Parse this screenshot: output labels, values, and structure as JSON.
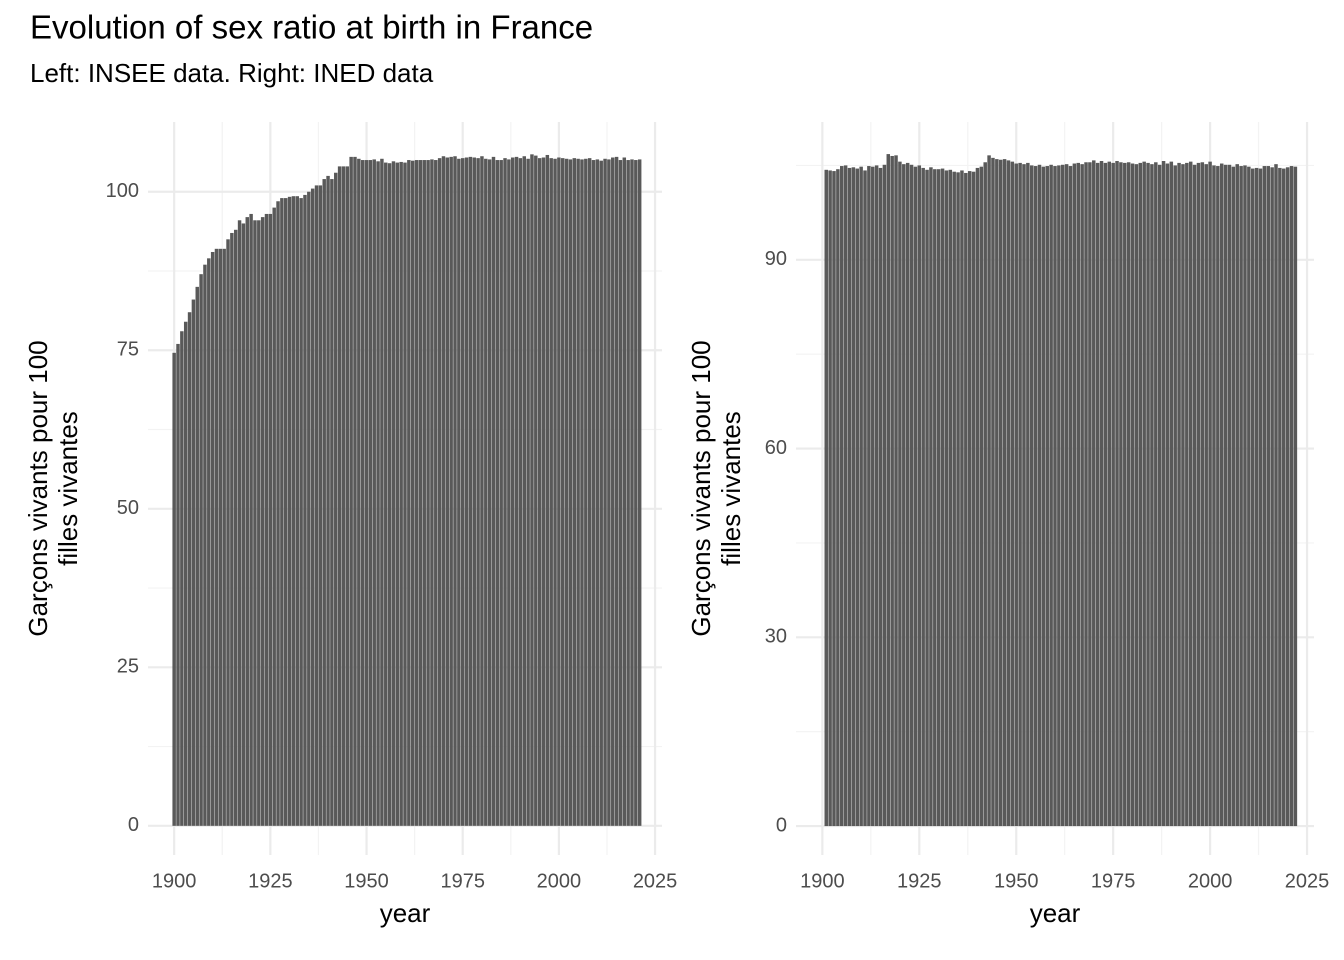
{
  "title": "Evolution of sex ratio  at birth in France",
  "subtitle": "Left: INSEE data. Right: INED data",
  "chart_data": [
    {
      "type": "bar",
      "color": "#595959",
      "grid": true,
      "xlabel": "year",
      "ylabel": [
        "Garçons vivants pour 100",
        "filles vivantes"
      ],
      "xlim": [
        1893.2,
        2026.8
      ],
      "ylim": [
        -4.6,
        111.0
      ],
      "xticks": [
        1900,
        1925,
        1950,
        1975,
        2000,
        2025
      ],
      "yticks": [
        0,
        25,
        50,
        75,
        100
      ],
      "x_minor_ticks": [
        1912.5,
        1937.5,
        1962.5,
        1987.5,
        2012.5
      ],
      "y_minor_ticks": [
        12.5,
        37.5,
        62.5,
        87.5
      ],
      "x": [
        1900,
        1901,
        1902,
        1903,
        1904,
        1905,
        1906,
        1907,
        1908,
        1909,
        1910,
        1911,
        1912,
        1913,
        1914,
        1915,
        1916,
        1917,
        1918,
        1919,
        1920,
        1921,
        1922,
        1923,
        1924,
        1925,
        1926,
        1927,
        1928,
        1929,
        1930,
        1931,
        1932,
        1933,
        1934,
        1935,
        1936,
        1937,
        1938,
        1939,
        1940,
        1941,
        1942,
        1943,
        1944,
        1945,
        1946,
        1947,
        1948,
        1949,
        1950,
        1951,
        1952,
        1953,
        1954,
        1955,
        1956,
        1957,
        1958,
        1959,
        1960,
        1961,
        1962,
        1963,
        1964,
        1965,
        1966,
        1967,
        1968,
        1969,
        1970,
        1971,
        1972,
        1973,
        1974,
        1975,
        1976,
        1977,
        1978,
        1979,
        1980,
        1981,
        1982,
        1983,
        1984,
        1985,
        1986,
        1987,
        1988,
        1989,
        1990,
        1991,
        1992,
        1993,
        1994,
        1995,
        1996,
        1997,
        1998,
        1999,
        2000,
        2001,
        2002,
        2003,
        2004,
        2005,
        2006,
        2007,
        2008,
        2009,
        2010,
        2011,
        2012,
        2013,
        2014,
        2015,
        2016,
        2017,
        2018,
        2019,
        2020,
        2021
      ],
      "values": [
        74.6,
        76,
        78,
        79.5,
        81,
        83,
        85,
        87,
        88.5,
        89.5,
        90.5,
        91,
        91,
        91,
        92.5,
        93.5,
        94,
        95.5,
        95,
        96,
        96.5,
        95.5,
        95.5,
        96,
        96.5,
        96.5,
        97.5,
        98.5,
        99,
        99,
        99.2,
        99.3,
        99.3,
        99,
        99.5,
        100,
        100.5,
        101,
        101,
        102,
        102.5,
        102,
        103,
        104,
        104,
        104,
        105.5,
        105.5,
        105.2,
        105,
        105,
        105,
        105.1,
        104.8,
        105.2,
        104.6,
        104.5,
        104.8,
        104.6,
        104.7,
        104.6,
        105,
        104.9,
        105,
        105,
        105,
        105,
        105.1,
        105,
        105.3,
        105.6,
        105.4,
        105.5,
        105.6,
        105.2,
        105.3,
        105.4,
        105.5,
        105.4,
        105.3,
        105.6,
        105.2,
        105.1,
        105.5,
        105,
        105,
        105.3,
        105.1,
        105.4,
        105.5,
        105.3,
        105.6,
        105.2,
        105.9,
        105.7,
        105.3,
        105.4,
        105.8,
        105.3,
        105.2,
        105.4,
        105.3,
        105.2,
        105.1,
        105.3,
        105.2,
        105.1,
        105.2,
        105.3,
        105,
        105.1,
        104.9,
        105.2,
        105.1,
        105.4,
        105.5,
        105,
        105.4,
        105,
        105.1,
        105,
        105.1
      ]
    },
    {
      "type": "bar",
      "color": "#595959",
      "grid": true,
      "xlabel": "year",
      "ylabel": [
        "Garçons vivants pour 100",
        "filles vivantes"
      ],
      "xlim": [
        1893.2,
        2026.8
      ],
      "ylim": [
        -4.6,
        111.9
      ],
      "xticks": [
        1900,
        1925,
        1950,
        1975,
        2000,
        2025
      ],
      "yticks": [
        0,
        30,
        60,
        90
      ],
      "x_minor_ticks": [
        1912.5,
        1937.5,
        1962.5,
        1987.5,
        2012.5
      ],
      "y_minor_ticks": [
        15,
        45,
        75,
        105
      ],
      "x": [
        1901,
        1902,
        1903,
        1904,
        1905,
        1906,
        1907,
        1908,
        1909,
        1910,
        1911,
        1912,
        1913,
        1914,
        1915,
        1916,
        1917,
        1918,
        1919,
        1920,
        1921,
        1922,
        1923,
        1924,
        1925,
        1926,
        1927,
        1928,
        1929,
        1930,
        1931,
        1932,
        1933,
        1934,
        1935,
        1936,
        1937,
        1938,
        1939,
        1940,
        1941,
        1942,
        1943,
        1944,
        1945,
        1946,
        1947,
        1948,
        1949,
        1950,
        1951,
        1952,
        1953,
        1954,
        1955,
        1956,
        1957,
        1958,
        1959,
        1960,
        1961,
        1962,
        1963,
        1964,
        1965,
        1966,
        1967,
        1968,
        1969,
        1970,
        1971,
        1972,
        1973,
        1974,
        1975,
        1976,
        1977,
        1978,
        1979,
        1980,
        1981,
        1982,
        1983,
        1984,
        1985,
        1986,
        1987,
        1988,
        1989,
        1990,
        1991,
        1992,
        1993,
        1994,
        1995,
        1996,
        1997,
        1998,
        1999,
        2000,
        2001,
        2002,
        2003,
        2004,
        2005,
        2006,
        2007,
        2008,
        2009,
        2010,
        2011,
        2012,
        2013,
        2014,
        2015,
        2016,
        2017,
        2018,
        2019,
        2020,
        2021,
        2022
      ],
      "values": [
        104.3,
        104.2,
        104.1,
        104.4,
        104.9,
        105,
        104.6,
        104.7,
        104.5,
        104.8,
        104.2,
        104.9,
        104.8,
        105,
        104.6,
        105.1,
        106.8,
        106.5,
        106.6,
        105.6,
        105.2,
        105.4,
        105.1,
        104.8,
        105,
        104.6,
        104.3,
        104.7,
        104.4,
        104.4,
        104.5,
        104.2,
        104.3,
        104.0,
        103.9,
        104.2,
        103.8,
        104.1,
        104.0,
        104.6,
        104.8,
        105.5,
        106.6,
        106.2,
        106,
        105.9,
        106,
        105.8,
        105.6,
        105.3,
        105.4,
        105.2,
        105.4,
        105,
        104.9,
        105.1,
        104.8,
        104.9,
        105.1,
        104.9,
        105,
        105.1,
        105.2,
        104.9,
        105.3,
        105.4,
        105.2,
        105.5,
        105.5,
        105.8,
        105.4,
        105.7,
        105.4,
        105.6,
        105.4,
        105.7,
        105.5,
        105.4,
        105.5,
        105.3,
        105.2,
        105.4,
        105.6,
        105.4,
        105.2,
        105.5,
        105.1,
        105.7,
        105.3,
        105.6,
        105,
        105.4,
        105.2,
        105.4,
        105.6,
        105.1,
        105.4,
        105.5,
        105.2,
        105.6,
        105,
        104.9,
        105.3,
        105.1,
        105.1,
        104.8,
        105.2,
        104.9,
        105,
        104.8,
        104.5,
        104.6,
        104.5,
        104.9,
        104.9,
        104.7,
        105.2,
        104.6,
        104.5,
        104.7,
        104.9,
        104.8
      ]
    }
  ]
}
